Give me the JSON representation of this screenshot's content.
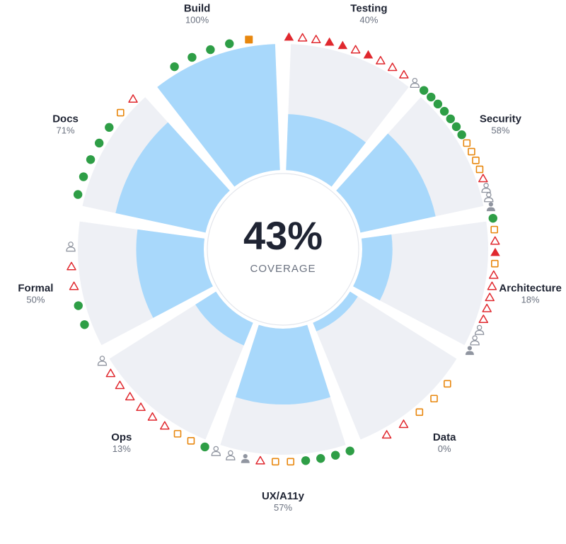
{
  "chart_data": {
    "type": "radial-bar",
    "center": {
      "value": "43%",
      "label": "COVERAGE"
    },
    "colors": {
      "track": "#eef0f5",
      "fill": "#a8d8fb",
      "done": "#2e9e46",
      "pending": "#e8870e",
      "failed": "#e0282e",
      "person": "#9095a0"
    },
    "categories": [
      {
        "name": "Docs",
        "percent_label": "71%",
        "value": 71,
        "markers": [
          "done",
          "done",
          "done",
          "done",
          "done",
          "pending-outline",
          "failed-outline"
        ]
      },
      {
        "name": "Build",
        "percent_label": "100%",
        "value": 100,
        "markers": [
          "done",
          "done",
          "done",
          "done",
          "pending"
        ]
      },
      {
        "name": "Testing",
        "percent_label": "40%",
        "value": 40,
        "markers": [
          "failed",
          "failed-outline",
          "failed-outline",
          "failed",
          "failed",
          "failed-outline",
          "failed",
          "failed-outline",
          "failed-outline",
          "failed-outline",
          "person-outline"
        ]
      },
      {
        "name": "Security",
        "percent_label": "58%",
        "value": 58,
        "markers": [
          "done",
          "done",
          "done",
          "done",
          "done",
          "done",
          "done",
          "pending-outline",
          "pending-outline",
          "pending-outline",
          "pending-outline",
          "failed-outline",
          "person-outline",
          "person-outline",
          "person"
        ]
      },
      {
        "name": "Architecture",
        "percent_label": "18%",
        "value": 18,
        "markers": [
          "done",
          "pending-outline",
          "failed-outline",
          "failed",
          "pending-outline",
          "failed-outline",
          "failed-outline",
          "failed-outline",
          "failed-outline",
          "failed-outline",
          "person-outline",
          "person-outline",
          "person"
        ]
      },
      {
        "name": "Data",
        "percent_label": "0%",
        "value": 0,
        "markers": [
          "pending-outline",
          "pending-outline",
          "pending-outline",
          "failed-outline",
          "failed-outline"
        ]
      },
      {
        "name": "UX/A11y",
        "percent_label": "57%",
        "value": 57,
        "markers": [
          "done",
          "done",
          "done",
          "done",
          "pending-outline",
          "pending-outline",
          "failed-outline",
          "person",
          "person-outline",
          "person-outline"
        ]
      },
      {
        "name": "Ops",
        "percent_label": "13%",
        "value": 13,
        "markers": [
          "done",
          "pending-outline",
          "pending-outline",
          "failed-outline",
          "failed-outline",
          "failed-outline",
          "failed-outline",
          "failed-outline",
          "failed-outline",
          "person-outline"
        ]
      },
      {
        "name": "Formal",
        "percent_label": "50%",
        "value": 50,
        "markers": [
          "done",
          "done",
          "failed-outline",
          "failed-outline",
          "person-outline"
        ]
      }
    ]
  }
}
